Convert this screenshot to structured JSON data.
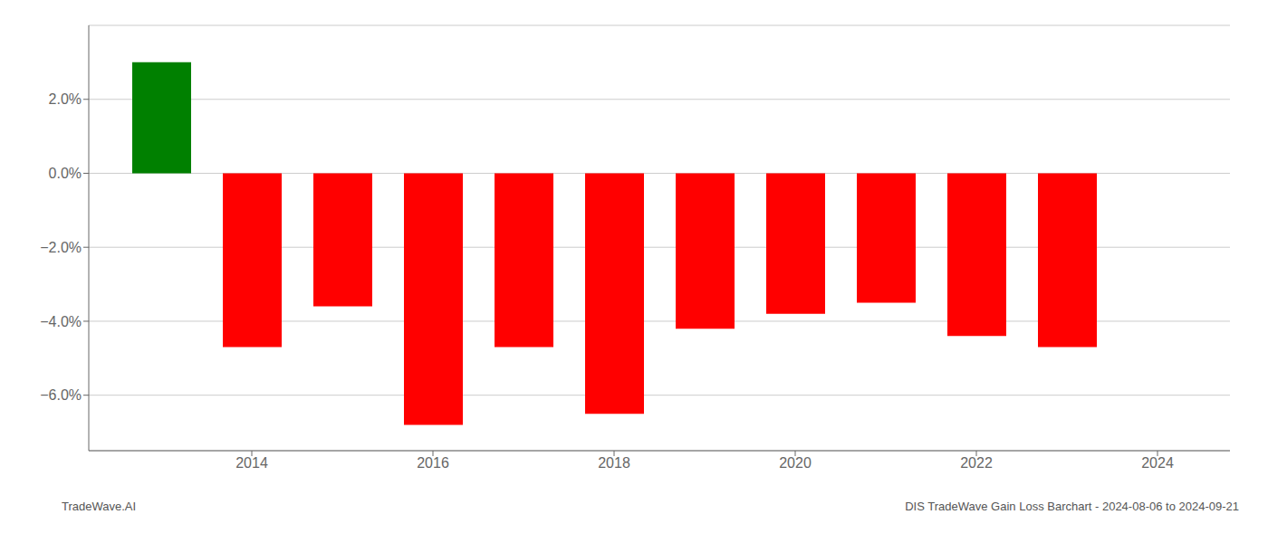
{
  "chart_data": {
    "type": "bar",
    "x": [
      2013,
      2014,
      2015,
      2016,
      2017,
      2018,
      2019,
      2020,
      2021,
      2022,
      2023
    ],
    "values": [
      0.03,
      -0.047,
      -0.036,
      -0.068,
      -0.047,
      -0.065,
      -0.042,
      -0.038,
      -0.035,
      -0.044,
      -0.047
    ],
    "colors": [
      "#008000",
      "#ff0000",
      "#ff0000",
      "#ff0000",
      "#ff0000",
      "#ff0000",
      "#ff0000",
      "#ff0000",
      "#ff0000",
      "#ff0000",
      "#ff0000"
    ],
    "xlim": [
      2012.2,
      2024.8
    ],
    "xticks": [
      2014,
      2016,
      2018,
      2020,
      2022,
      2024
    ],
    "ylim": [
      -0.075,
      0.04
    ],
    "yticks": [
      {
        "value": -0.06,
        "label": "−6.0%"
      },
      {
        "value": -0.04,
        "label": "−4.0%"
      },
      {
        "value": -0.02,
        "label": "−2.0%"
      },
      {
        "value": 0.0,
        "label": "0.0%"
      },
      {
        "value": 0.02,
        "label": "2.0%"
      }
    ],
    "grid": "y",
    "annotations": [
      "TradeWave.AI",
      "DIS TradeWave Gain Loss Barchart - 2024-08-06 to 2024-09-21"
    ]
  }
}
